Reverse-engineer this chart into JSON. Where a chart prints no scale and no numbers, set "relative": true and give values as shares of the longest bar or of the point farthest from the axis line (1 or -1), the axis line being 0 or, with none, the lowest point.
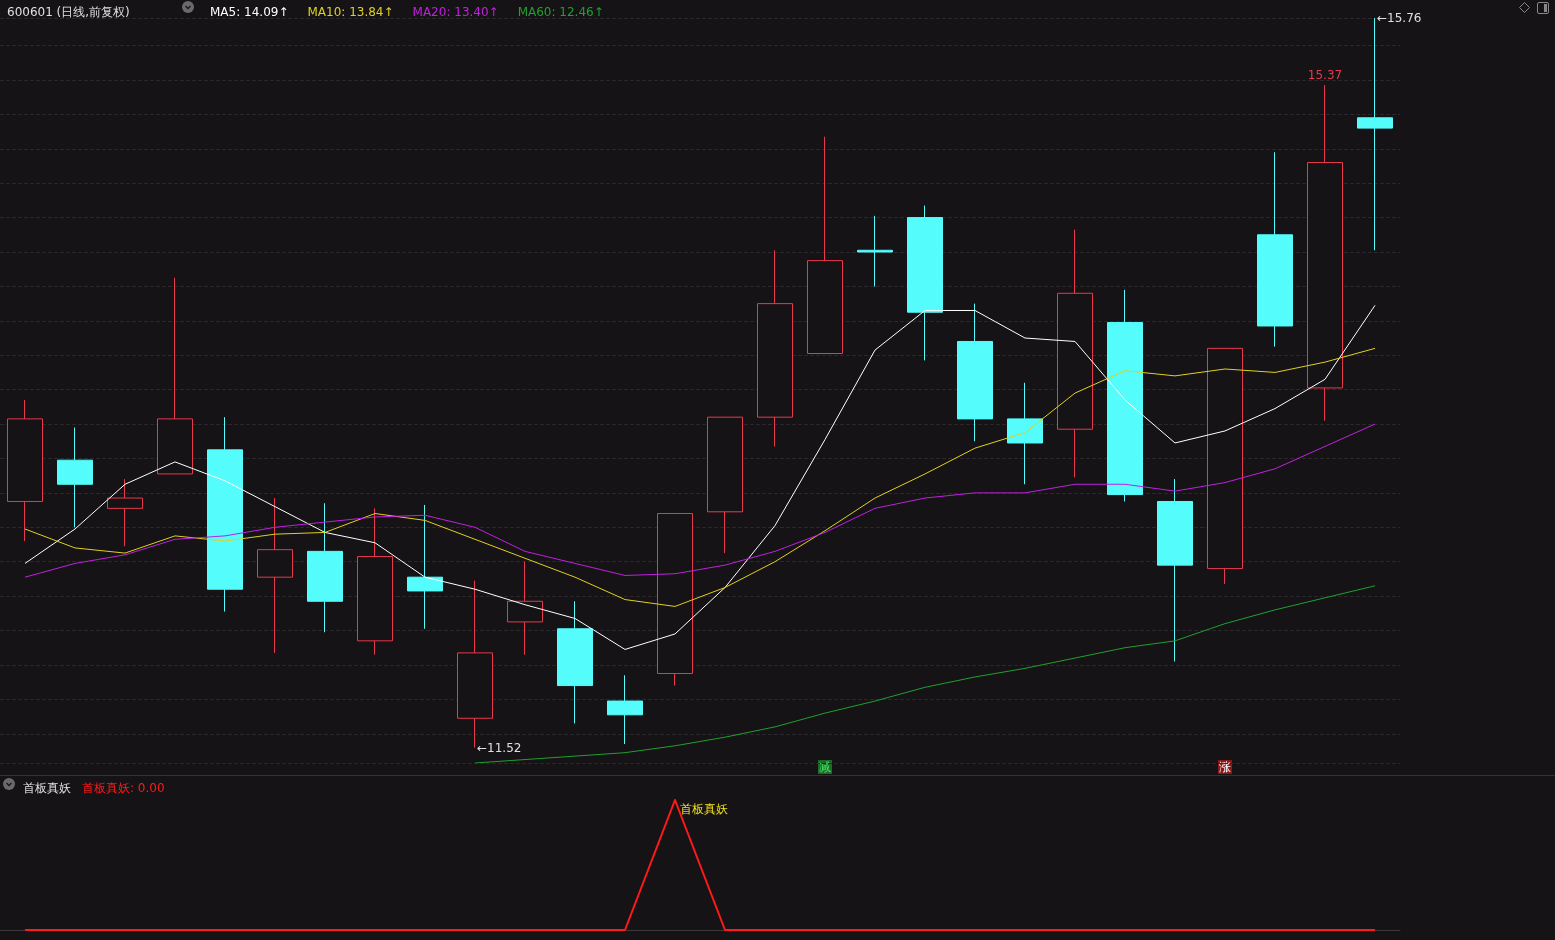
{
  "chart_data": [
    {
      "type": "candlestick",
      "title": "600601 (日线,前复权)",
      "categories": [
        null,
        null,
        null,
        null,
        null,
        null,
        null,
        null,
        null,
        null,
        null,
        null,
        null,
        null,
        null,
        null,
        null,
        null,
        null,
        null,
        null,
        null,
        null,
        null,
        null,
        null,
        null,
        null
      ],
      "ohlc": [
        [
          12.95,
          13.54,
          12.72,
          13.43
        ],
        [
          13.19,
          13.38,
          12.8,
          13.05
        ],
        [
          12.91,
          13.08,
          12.69,
          12.97
        ],
        [
          13.11,
          14.25,
          13.11,
          13.43
        ],
        [
          13.25,
          13.44,
          12.31,
          12.44
        ],
        [
          12.51,
          12.97,
          12.07,
          12.67
        ],
        [
          12.66,
          12.94,
          12.19,
          12.37
        ],
        [
          12.14,
          12.91,
          12.06,
          12.63
        ],
        [
          12.51,
          12.93,
          12.21,
          12.43
        ],
        [
          11.69,
          12.49,
          11.52,
          12.07
        ],
        [
          12.25,
          12.6,
          12.06,
          12.37
        ],
        [
          12.21,
          12.37,
          11.66,
          11.88
        ],
        [
          11.79,
          11.94,
          11.54,
          11.71
        ],
        [
          11.95,
          12.88,
          11.88,
          12.88
        ],
        [
          12.89,
          13.44,
          12.65,
          13.44
        ],
        [
          13.44,
          14.41,
          13.27,
          14.1
        ],
        [
          13.81,
          15.07,
          13.81,
          14.35
        ],
        [
          14.41,
          14.61,
          14.2,
          14.4
        ],
        [
          14.6,
          14.67,
          13.77,
          14.05
        ],
        [
          13.88,
          14.1,
          13.3,
          13.43
        ],
        [
          13.43,
          13.64,
          13.05,
          13.29
        ],
        [
          13.37,
          14.53,
          13.09,
          14.16
        ],
        [
          13.99,
          14.18,
          12.95,
          12.99
        ],
        [
          12.95,
          13.08,
          12.02,
          12.58
        ],
        [
          12.56,
          13.84,
          12.47,
          13.84
        ],
        [
          14.5,
          14.98,
          13.85,
          13.97
        ],
        [
          13.61,
          15.37,
          13.42,
          14.92
        ],
        [
          15.18,
          15.76,
          14.41,
          15.12
        ]
      ],
      "colors": [
        "#e8394d",
        "#54fcfc",
        "#e8394d",
        "#e8394d",
        "#54fcfc",
        "#e8394d",
        "#54fcfc",
        "#e8394d",
        "#54fcfc",
        "#e8394d",
        "#e8394d",
        "#54fcfc",
        "#54fcfc",
        "#e8394d",
        "#e8394d",
        "#e8394d",
        "#e8394d",
        "#54fcfc",
        "#54fcfc",
        "#54fcfc",
        "#54fcfc",
        "#e8394d",
        "#54fcfc",
        "#54fcfc",
        "#e8394d",
        "#54fcfc",
        "#e8394d",
        "#54fcfc"
      ],
      "series": [
        {
          "name": "MA5: 14.09↑",
          "type": "line",
          "color": "#ffffff",
          "values": [
            12.59,
            12.79,
            13.05,
            13.18,
            13.07,
            12.92,
            12.77,
            12.71,
            12.51,
            12.44,
            12.35,
            12.27,
            12.09,
            12.18,
            12.45,
            12.81,
            13.31,
            13.83,
            14.06,
            14.06,
            13.9,
            13.88,
            13.54,
            13.29,
            13.36,
            13.49,
            13.66,
            14.09
          ]
        },
        {
          "name": "MA10: 13.84↑",
          "type": "line",
          "color": "#e0d020",
          "values": [
            12.79,
            12.68,
            12.65,
            12.75,
            12.72,
            12.76,
            12.77,
            12.88,
            12.84,
            12.73,
            12.62,
            12.51,
            12.38,
            12.34,
            12.45,
            12.6,
            12.78,
            12.97,
            13.11,
            13.26,
            13.35,
            13.58,
            13.71,
            13.68,
            13.72,
            13.7,
            13.76,
            13.84
          ]
        },
        {
          "name": "MA20: 13.40↑",
          "type": "line",
          "color": "#c020e0",
          "values": [
            12.51,
            12.59,
            12.64,
            12.73,
            12.75,
            12.8,
            12.83,
            12.86,
            12.87,
            12.8,
            12.66,
            12.59,
            12.52,
            12.53,
            12.58,
            12.66,
            12.77,
            12.91,
            12.97,
            13.0,
            13.0,
            13.05,
            13.05,
            13.01,
            13.06,
            13.14,
            13.27,
            13.4
          ]
        },
        {
          "name": "MA60: 12.46↑",
          "type": "line",
          "color": "#20a030",
          "values": [
            null,
            null,
            null,
            null,
            null,
            null,
            null,
            null,
            null,
            11.43,
            11.45,
            11.47,
            11.49,
            11.53,
            11.58,
            11.64,
            11.72,
            11.79,
            11.87,
            11.93,
            11.98,
            12.04,
            12.1,
            12.14,
            12.24,
            12.32,
            12.39,
            12.46
          ]
        }
      ],
      "legend": "top left",
      "marker": "none",
      "grid": "y",
      "annotations": [
        "←11.52",
        "15.37",
        "←15.76",
        "减",
        "涨"
      ]
    },
    {
      "type": "line",
      "title": "首板真妖",
      "categories": [
        null,
        null,
        null,
        null,
        null,
        null,
        null,
        null,
        null,
        null,
        null,
        null,
        null,
        null,
        null,
        null,
        null,
        null,
        null,
        null,
        null,
        null,
        null,
        null,
        null,
        null,
        null,
        null
      ],
      "series": [
        {
          "name": "首板真妖: 0.00",
          "color": "#ff1a1a",
          "values": [
            0,
            0,
            0,
            0,
            0,
            0,
            0,
            0,
            0,
            0,
            0,
            0,
            0,
            1,
            0,
            0,
            0,
            0,
            0,
            0,
            0,
            0,
            0,
            0,
            0,
            0,
            0,
            0
          ]
        }
      ],
      "relative": true,
      "legend": "top left",
      "marker": "none",
      "annotations": [
        "首板真妖"
      ]
    }
  ]
}
